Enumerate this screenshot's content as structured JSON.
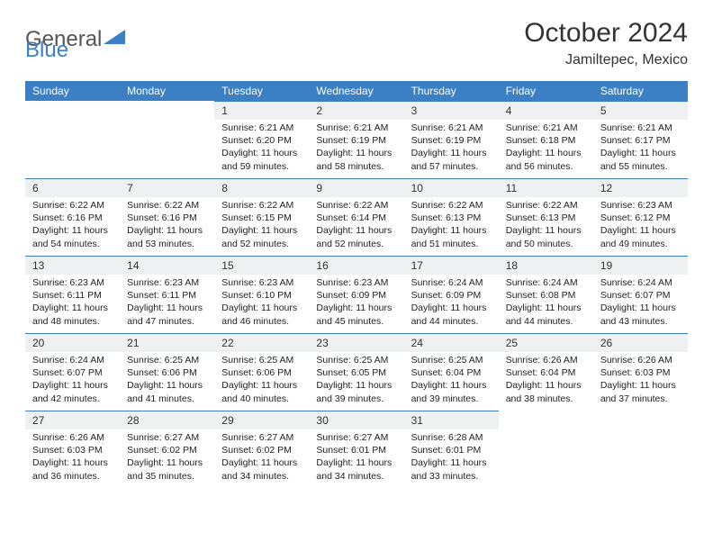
{
  "brand": {
    "name_part1": "General",
    "name_part2": "Blue",
    "color_accent": "#3b7fc4",
    "color_text": "#555555"
  },
  "title": "October 2024",
  "location": "Jamiltepec, Mexico",
  "header_bg": "#3b7fc4",
  "header_fg": "#ffffff",
  "daynum_bg": "#eef0f2",
  "weekdays": [
    "Sunday",
    "Monday",
    "Tuesday",
    "Wednesday",
    "Thursday",
    "Friday",
    "Saturday"
  ],
  "weeks": [
    [
      null,
      null,
      {
        "n": "1",
        "sr": "6:21 AM",
        "ss": "6:20 PM",
        "dl": "11 hours and 59 minutes."
      },
      {
        "n": "2",
        "sr": "6:21 AM",
        "ss": "6:19 PM",
        "dl": "11 hours and 58 minutes."
      },
      {
        "n": "3",
        "sr": "6:21 AM",
        "ss": "6:19 PM",
        "dl": "11 hours and 57 minutes."
      },
      {
        "n": "4",
        "sr": "6:21 AM",
        "ss": "6:18 PM",
        "dl": "11 hours and 56 minutes."
      },
      {
        "n": "5",
        "sr": "6:21 AM",
        "ss": "6:17 PM",
        "dl": "11 hours and 55 minutes."
      }
    ],
    [
      {
        "n": "6",
        "sr": "6:22 AM",
        "ss": "6:16 PM",
        "dl": "11 hours and 54 minutes."
      },
      {
        "n": "7",
        "sr": "6:22 AM",
        "ss": "6:16 PM",
        "dl": "11 hours and 53 minutes."
      },
      {
        "n": "8",
        "sr": "6:22 AM",
        "ss": "6:15 PM",
        "dl": "11 hours and 52 minutes."
      },
      {
        "n": "9",
        "sr": "6:22 AM",
        "ss": "6:14 PM",
        "dl": "11 hours and 52 minutes."
      },
      {
        "n": "10",
        "sr": "6:22 AM",
        "ss": "6:13 PM",
        "dl": "11 hours and 51 minutes."
      },
      {
        "n": "11",
        "sr": "6:22 AM",
        "ss": "6:13 PM",
        "dl": "11 hours and 50 minutes."
      },
      {
        "n": "12",
        "sr": "6:23 AM",
        "ss": "6:12 PM",
        "dl": "11 hours and 49 minutes."
      }
    ],
    [
      {
        "n": "13",
        "sr": "6:23 AM",
        "ss": "6:11 PM",
        "dl": "11 hours and 48 minutes."
      },
      {
        "n": "14",
        "sr": "6:23 AM",
        "ss": "6:11 PM",
        "dl": "11 hours and 47 minutes."
      },
      {
        "n": "15",
        "sr": "6:23 AM",
        "ss": "6:10 PM",
        "dl": "11 hours and 46 minutes."
      },
      {
        "n": "16",
        "sr": "6:23 AM",
        "ss": "6:09 PM",
        "dl": "11 hours and 45 minutes."
      },
      {
        "n": "17",
        "sr": "6:24 AM",
        "ss": "6:09 PM",
        "dl": "11 hours and 44 minutes."
      },
      {
        "n": "18",
        "sr": "6:24 AM",
        "ss": "6:08 PM",
        "dl": "11 hours and 44 minutes."
      },
      {
        "n": "19",
        "sr": "6:24 AM",
        "ss": "6:07 PM",
        "dl": "11 hours and 43 minutes."
      }
    ],
    [
      {
        "n": "20",
        "sr": "6:24 AM",
        "ss": "6:07 PM",
        "dl": "11 hours and 42 minutes."
      },
      {
        "n": "21",
        "sr": "6:25 AM",
        "ss": "6:06 PM",
        "dl": "11 hours and 41 minutes."
      },
      {
        "n": "22",
        "sr": "6:25 AM",
        "ss": "6:06 PM",
        "dl": "11 hours and 40 minutes."
      },
      {
        "n": "23",
        "sr": "6:25 AM",
        "ss": "6:05 PM",
        "dl": "11 hours and 39 minutes."
      },
      {
        "n": "24",
        "sr": "6:25 AM",
        "ss": "6:04 PM",
        "dl": "11 hours and 39 minutes."
      },
      {
        "n": "25",
        "sr": "6:26 AM",
        "ss": "6:04 PM",
        "dl": "11 hours and 38 minutes."
      },
      {
        "n": "26",
        "sr": "6:26 AM",
        "ss": "6:03 PM",
        "dl": "11 hours and 37 minutes."
      }
    ],
    [
      {
        "n": "27",
        "sr": "6:26 AM",
        "ss": "6:03 PM",
        "dl": "11 hours and 36 minutes."
      },
      {
        "n": "28",
        "sr": "6:27 AM",
        "ss": "6:02 PM",
        "dl": "11 hours and 35 minutes."
      },
      {
        "n": "29",
        "sr": "6:27 AM",
        "ss": "6:02 PM",
        "dl": "11 hours and 34 minutes."
      },
      {
        "n": "30",
        "sr": "6:27 AM",
        "ss": "6:01 PM",
        "dl": "11 hours and 34 minutes."
      },
      {
        "n": "31",
        "sr": "6:28 AM",
        "ss": "6:01 PM",
        "dl": "11 hours and 33 minutes."
      },
      null,
      null
    ]
  ]
}
